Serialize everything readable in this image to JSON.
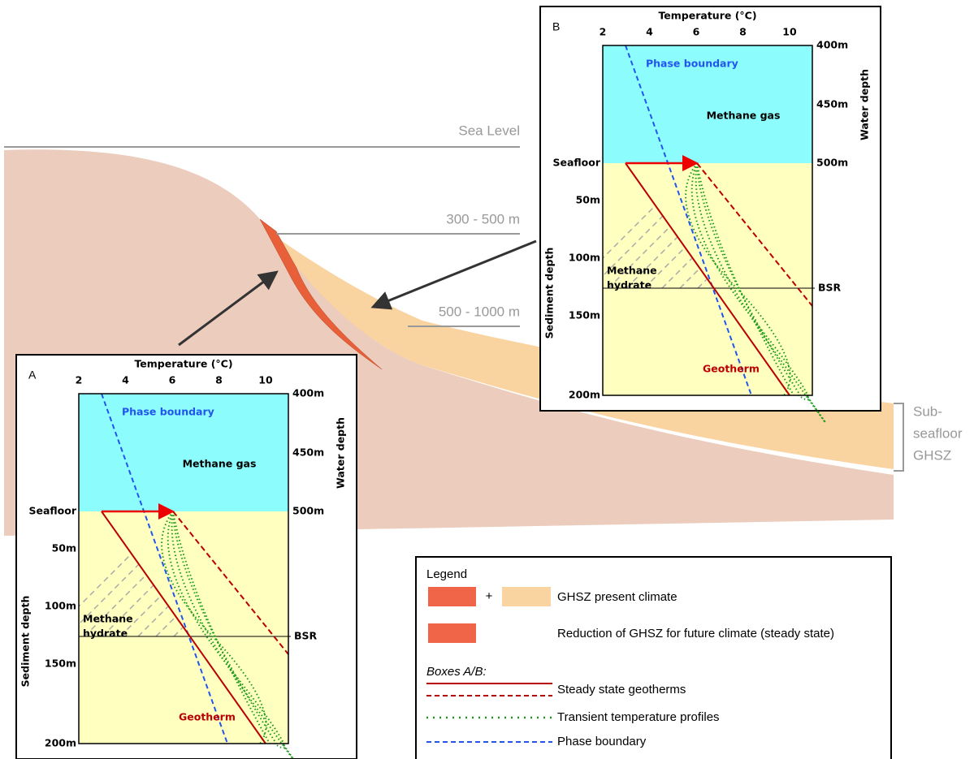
{
  "background": {
    "sea_level": "Sea Level",
    "depth_labels": [
      "300 - 500 m",
      "500 - 1000 m"
    ],
    "ghsz_label": [
      "Sub-",
      "seafloor",
      "GHSZ"
    ]
  },
  "panels": [
    {
      "letter": "A",
      "axis_title": "Temperature (°C)",
      "temperature_ticks": [
        2,
        4,
        6,
        8,
        10
      ],
      "water_depth_ticks": [
        "400m",
        "450m",
        "500m"
      ],
      "water_depth_label": "Water depth",
      "seafloor": "Seafloor",
      "sediment_depth_ticks": [
        "50m",
        "100m",
        "150m",
        "200m"
      ],
      "sediment_depth_label": "Sediment depth",
      "bsr": "BSR",
      "phase_boundary": "Phase boundary",
      "methane_gas": "Methane gas",
      "methane_hydrate": [
        "Methane",
        "hydrate"
      ],
      "geotherm": "Geotherm"
    },
    {
      "letter": "B",
      "axis_title": "Temperature (°C)",
      "temperature_ticks": [
        2,
        4,
        6,
        8,
        10
      ],
      "water_depth_ticks": [
        "400m",
        "450m",
        "500m"
      ],
      "water_depth_label": "Water depth",
      "seafloor": "Seafloor",
      "sediment_depth_ticks": [
        "50m",
        "100m",
        "150m",
        "200m"
      ],
      "sediment_depth_label": "Sediment depth",
      "bsr": "BSR",
      "phase_boundary": "Phase boundary",
      "methane_gas": "Methane gas",
      "methane_hydrate": [
        "Methane",
        "hydrate"
      ],
      "geotherm": "Geotherm"
    }
  ],
  "legend": {
    "title": "Legend",
    "plus": "+",
    "present": "GHSZ present climate",
    "reduction": "Reduction of GHSZ for future climate (steady state)",
    "boxes": "Boxes A/B:",
    "geotherms": "Steady state geotherms",
    "transient": "Transient temperature profiles",
    "phase": "Phase boundary"
  }
}
